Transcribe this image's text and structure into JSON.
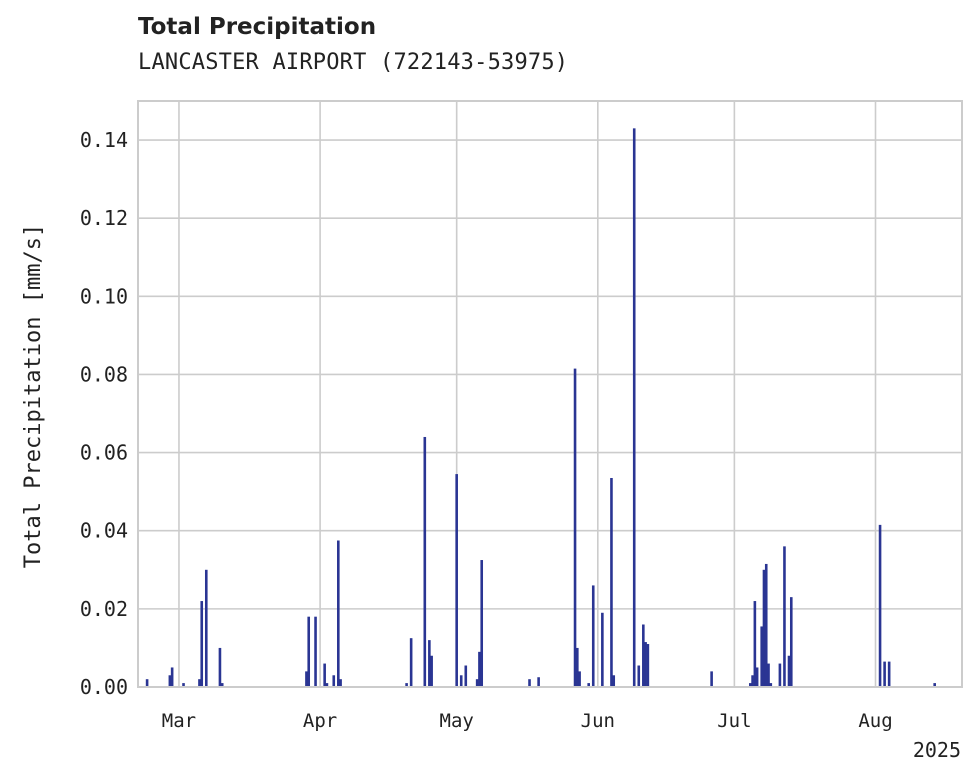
{
  "chart_data": {
    "type": "bar",
    "title": "Total Precipitation",
    "subtitle": "LANCASTER AIRPORT (722143-53975)",
    "ylabel": "Total Precipitation [mm/s]",
    "xlabel": "",
    "year_label": "2025",
    "ylim": [
      0,
      0.15
    ],
    "xlim": [
      "2025-02-20",
      "2025-08-20"
    ],
    "grid": true,
    "y_ticks": [
      {
        "value": 0.0,
        "label": "0.00"
      },
      {
        "value": 0.02,
        "label": "0.02"
      },
      {
        "value": 0.04,
        "label": "0.04"
      },
      {
        "value": 0.06,
        "label": "0.06"
      },
      {
        "value": 0.08,
        "label": "0.08"
      },
      {
        "value": 0.1,
        "label": "0.10"
      },
      {
        "value": 0.12,
        "label": "0.12"
      },
      {
        "value": 0.14,
        "label": "0.14"
      }
    ],
    "x_ticks": [
      {
        "date": "2025-03-01",
        "label": "Mar"
      },
      {
        "date": "2025-04-01",
        "label": "Apr"
      },
      {
        "date": "2025-05-01",
        "label": "May"
      },
      {
        "date": "2025-06-01",
        "label": "Jun"
      },
      {
        "date": "2025-07-01",
        "label": "Jul"
      },
      {
        "date": "2025-08-01",
        "label": "Aug"
      }
    ],
    "series": [
      {
        "color": "#2a3593",
        "points": [
          {
            "x": "2025-02-22",
            "y": 0.002
          },
          {
            "x": "2025-02-27",
            "y": 0.003
          },
          {
            "x": "2025-02-27T12",
            "y": 0.005
          },
          {
            "x": "2025-03-02",
            "y": 0.001
          },
          {
            "x": "2025-03-05T12",
            "y": 0.002
          },
          {
            "x": "2025-03-06",
            "y": 0.022
          },
          {
            "x": "2025-03-07",
            "y": 0.03
          },
          {
            "x": "2025-03-10",
            "y": 0.01
          },
          {
            "x": "2025-03-10T12",
            "y": 0.001
          },
          {
            "x": "2025-03-29",
            "y": 0.004
          },
          {
            "x": "2025-03-29T12",
            "y": 0.018
          },
          {
            "x": "2025-03-31",
            "y": 0.018
          },
          {
            "x": "2025-04-02",
            "y": 0.006
          },
          {
            "x": "2025-04-02T12",
            "y": 0.001
          },
          {
            "x": "2025-04-04",
            "y": 0.003
          },
          {
            "x": "2025-04-05",
            "y": 0.0375
          },
          {
            "x": "2025-04-05T12",
            "y": 0.002
          },
          {
            "x": "2025-04-20",
            "y": 0.001
          },
          {
            "x": "2025-04-21",
            "y": 0.0125
          },
          {
            "x": "2025-04-24",
            "y": 0.064
          },
          {
            "x": "2025-04-25",
            "y": 0.012
          },
          {
            "x": "2025-04-25T12",
            "y": 0.008
          },
          {
            "x": "2025-05-01",
            "y": 0.0545
          },
          {
            "x": "2025-05-02",
            "y": 0.003
          },
          {
            "x": "2025-05-03",
            "y": 0.0055
          },
          {
            "x": "2025-05-05T12",
            "y": 0.002
          },
          {
            "x": "2025-05-06",
            "y": 0.009
          },
          {
            "x": "2025-05-06T12",
            "y": 0.0325
          },
          {
            "x": "2025-05-17",
            "y": 0.002
          },
          {
            "x": "2025-05-19",
            "y": 0.0025
          },
          {
            "x": "2025-05-27",
            "y": 0.0815
          },
          {
            "x": "2025-05-27T12",
            "y": 0.01
          },
          {
            "x": "2025-05-28",
            "y": 0.004
          },
          {
            "x": "2025-05-30",
            "y": 0.001
          },
          {
            "x": "2025-05-31",
            "y": 0.026
          },
          {
            "x": "2025-06-02",
            "y": 0.019
          },
          {
            "x": "2025-06-04",
            "y": 0.0535
          },
          {
            "x": "2025-06-04T12",
            "y": 0.003
          },
          {
            "x": "2025-06-09",
            "y": 0.143
          },
          {
            "x": "2025-06-10",
            "y": 0.0055
          },
          {
            "x": "2025-06-11",
            "y": 0.016
          },
          {
            "x": "2025-06-11T12",
            "y": 0.0115
          },
          {
            "x": "2025-06-12",
            "y": 0.011
          },
          {
            "x": "2025-06-26",
            "y": 0.004
          },
          {
            "x": "2025-07-04T12",
            "y": 0.001
          },
          {
            "x": "2025-07-05",
            "y": 0.003
          },
          {
            "x": "2025-07-05T12",
            "y": 0.022
          },
          {
            "x": "2025-07-06",
            "y": 0.005
          },
          {
            "x": "2025-07-07",
            "y": 0.0155
          },
          {
            "x": "2025-07-07T12",
            "y": 0.03
          },
          {
            "x": "2025-07-08",
            "y": 0.0315
          },
          {
            "x": "2025-07-08T12",
            "y": 0.006
          },
          {
            "x": "2025-07-09",
            "y": 0.001
          },
          {
            "x": "2025-07-11",
            "y": 0.006
          },
          {
            "x": "2025-07-12",
            "y": 0.036
          },
          {
            "x": "2025-07-13",
            "y": 0.008
          },
          {
            "x": "2025-07-13T12",
            "y": 0.023
          },
          {
            "x": "2025-08-02",
            "y": 0.0415
          },
          {
            "x": "2025-08-03",
            "y": 0.0065
          },
          {
            "x": "2025-08-04",
            "y": 0.0065
          },
          {
            "x": "2025-08-14",
            "y": 0.001
          }
        ]
      }
    ]
  }
}
